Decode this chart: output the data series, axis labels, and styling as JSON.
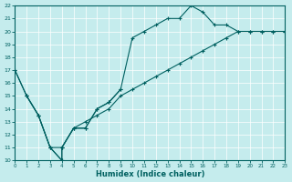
{
  "xlabel": "Humidex (Indice chaleur)",
  "xlim": [
    0,
    23
  ],
  "ylim": [
    10,
    22
  ],
  "yticks": [
    10,
    11,
    12,
    13,
    14,
    15,
    16,
    17,
    18,
    19,
    20,
    21,
    22
  ],
  "xticks": [
    0,
    1,
    2,
    3,
    4,
    5,
    6,
    7,
    8,
    9,
    10,
    11,
    12,
    13,
    14,
    15,
    16,
    17,
    18,
    19,
    20,
    21,
    22,
    23
  ],
  "bg_color": "#c5eced",
  "line_color": "#006060",
  "line1_x": [
    0,
    1,
    2,
    3,
    4,
    4,
    5,
    6,
    7,
    8,
    9
  ],
  "line1_y": [
    17,
    15,
    13.5,
    11,
    10,
    11,
    12.5,
    12.5,
    14,
    14.5,
    15.5
  ],
  "line2_x": [
    0,
    1,
    2,
    3,
    4,
    4,
    5,
    6,
    7,
    8,
    9,
    10,
    11,
    12,
    13,
    14,
    15,
    16,
    17,
    18,
    19,
    20,
    21,
    22,
    23
  ],
  "line2_y": [
    17,
    15,
    13.5,
    11,
    10,
    11,
    12.5,
    12.5,
    14,
    14.5,
    15.5,
    19.5,
    20,
    20.5,
    21,
    21,
    22,
    21.5,
    20.5,
    20.5,
    20,
    20,
    20,
    20,
    20
  ],
  "line3_x": [
    1,
    2,
    3,
    4,
    5,
    6,
    7,
    8,
    9,
    10,
    11,
    12,
    13,
    14,
    15,
    16,
    17,
    18,
    19,
    20,
    21,
    22,
    23
  ],
  "line3_y": [
    15,
    13.5,
    11,
    11,
    12.5,
    13,
    13.5,
    14,
    15,
    15.5,
    16,
    16.5,
    17,
    17.5,
    18,
    18.5,
    19,
    19.5,
    20,
    20,
    20,
    20,
    20
  ]
}
